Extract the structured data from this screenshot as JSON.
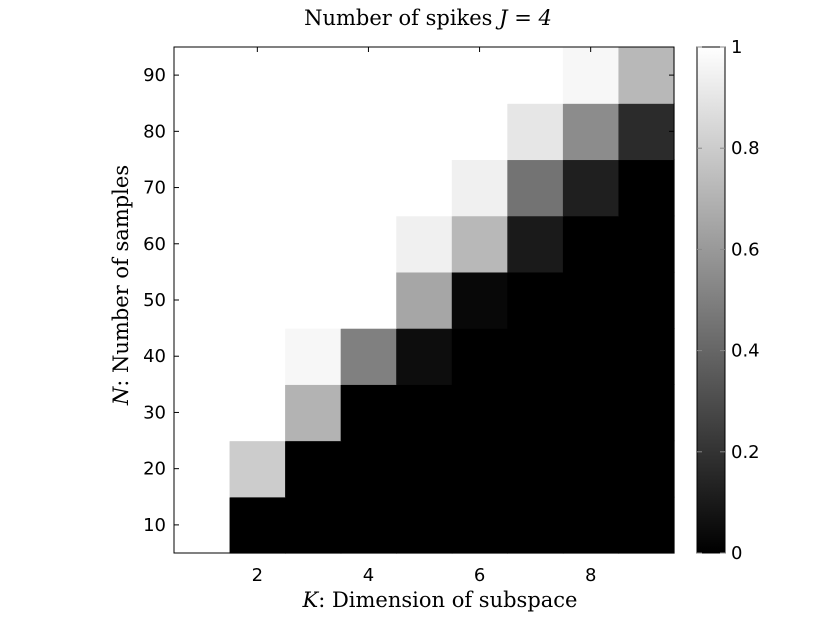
{
  "chart_data": {
    "type": "heatmap",
    "title_prefix": "Number of spikes ",
    "title_math": "J = 4",
    "xlabel_var": "K",
    "xlabel_text": ": Dimension of subspace",
    "ylabel_var": "N",
    "ylabel_text": ": Number of samples",
    "x": [
      1,
      2,
      3,
      4,
      5,
      6,
      7,
      8,
      9
    ],
    "y": [
      10,
      20,
      30,
      40,
      50,
      60,
      70,
      80,
      90
    ],
    "xticks": [
      2,
      4,
      6,
      8
    ],
    "yticks": [
      10,
      20,
      30,
      40,
      50,
      60,
      70,
      80,
      90
    ],
    "xlim": [
      0.5,
      9.5
    ],
    "ylim": [
      5,
      95
    ],
    "values": [
      [
        1,
        0,
        0,
        0,
        0,
        0,
        0,
        0,
        0
      ],
      [
        1,
        0.8,
        0,
        0,
        0,
        0,
        0,
        0,
        0
      ],
      [
        1,
        1,
        0.7,
        0,
        0,
        0,
        0,
        0,
        0
      ],
      [
        1,
        1,
        0.97,
        0.5,
        0.05,
        0,
        0,
        0,
        0
      ],
      [
        1,
        1,
        1,
        1,
        0.65,
        0.03,
        0,
        0,
        0
      ],
      [
        1,
        1,
        1,
        1,
        0.94,
        0.72,
        0.1,
        0,
        0
      ],
      [
        1,
        1,
        1,
        1,
        1,
        0.94,
        0.45,
        0.12,
        0
      ],
      [
        1,
        1,
        1,
        1,
        1,
        1,
        0.9,
        0.55,
        0.17
      ],
      [
        1,
        1,
        1,
        1,
        1,
        1,
        1,
        0.97,
        0.72
      ]
    ],
    "colormap": "gray",
    "colorbar": {
      "range": [
        0,
        1
      ],
      "ticks": [
        "0",
        "0.2",
        "0.4",
        "0.6",
        "0.8",
        "1"
      ],
      "tick_values": [
        0,
        0.2,
        0.4,
        0.6,
        0.8,
        1
      ]
    }
  }
}
